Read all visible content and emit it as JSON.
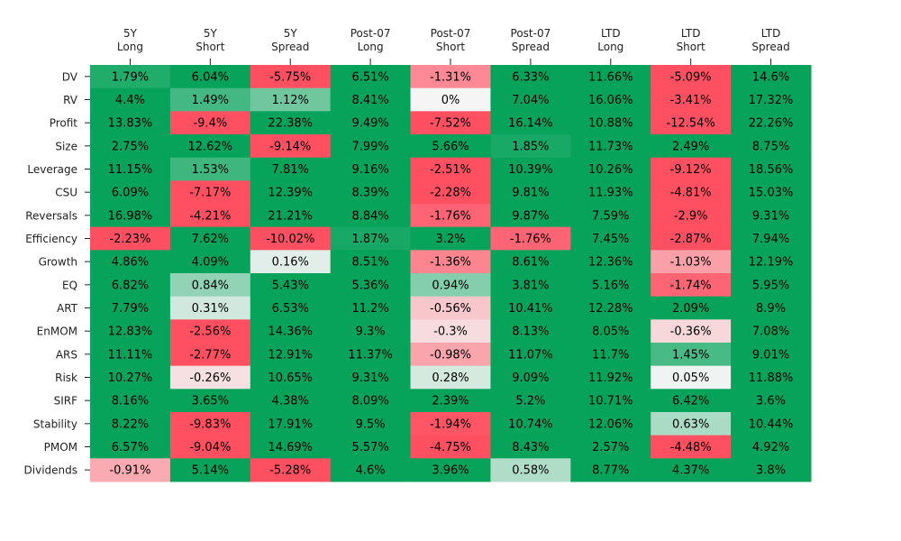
{
  "chart_data": {
    "type": "heatmap",
    "title": "",
    "columns": [
      "5Y\nLong",
      "5Y\nShort",
      "5Y\nSpread",
      "Post-07\nLong",
      "Post-07\nShort",
      "Post-07\nSpread",
      "LTD\nLong",
      "LTD\nShort",
      "LTD\nSpread"
    ],
    "rows": [
      "DV",
      "RV",
      "Profit",
      "Size",
      "Leverage",
      "CSU",
      "Reversals",
      "Efficiency",
      "Growth",
      "EQ",
      "ART",
      "EnMOM",
      "ARS",
      "Risk",
      "SIRF",
      "Stability",
      "PMOM",
      "Dividends"
    ],
    "values": [
      [
        1.79,
        6.04,
        -5.75,
        6.51,
        -1.31,
        6.33,
        11.66,
        -5.09,
        14.6
      ],
      [
        4.4,
        1.49,
        1.12,
        8.41,
        0.0,
        7.04,
        16.06,
        -3.41,
        17.32
      ],
      [
        13.83,
        -9.4,
        22.38,
        9.49,
        -7.52,
        16.14,
        10.88,
        -12.54,
        22.26
      ],
      [
        2.75,
        12.62,
        -9.14,
        7.99,
        5.66,
        1.85,
        11.73,
        2.49,
        8.75
      ],
      [
        11.15,
        1.53,
        7.81,
        9.16,
        -2.51,
        10.39,
        10.26,
        -9.12,
        18.56
      ],
      [
        6.09,
        -7.17,
        12.39,
        8.39,
        -2.28,
        9.81,
        11.93,
        -4.81,
        15.03
      ],
      [
        16.98,
        -4.21,
        21.21,
        8.84,
        -1.76,
        9.87,
        7.59,
        -2.9,
        9.31
      ],
      [
        -2.23,
        7.62,
        -10.02,
        1.87,
        3.2,
        -1.76,
        7.45,
        -2.87,
        7.94
      ],
      [
        4.86,
        4.09,
        0.16,
        8.51,
        -1.36,
        8.61,
        12.36,
        -1.03,
        12.19
      ],
      [
        6.82,
        0.84,
        5.43,
        5.36,
        0.94,
        3.81,
        5.16,
        -1.74,
        5.95
      ],
      [
        7.79,
        0.31,
        6.53,
        11.2,
        -0.56,
        10.41,
        12.28,
        2.09,
        8.9
      ],
      [
        12.83,
        -2.56,
        14.36,
        9.3,
        -0.3,
        8.13,
        8.05,
        -0.36,
        7.08
      ],
      [
        11.11,
        -2.77,
        12.91,
        11.37,
        -0.98,
        11.07,
        11.7,
        1.45,
        9.01
      ],
      [
        10.27,
        -0.26,
        10.65,
        9.31,
        0.28,
        9.09,
        11.92,
        0.05,
        11.88
      ],
      [
        8.16,
        3.65,
        4.38,
        8.09,
        2.39,
        5.2,
        10.71,
        6.42,
        3.6
      ],
      [
        8.22,
        -9.83,
        17.91,
        9.5,
        -1.94,
        10.74,
        12.06,
        0.63,
        10.44
      ],
      [
        6.57,
        -9.04,
        14.69,
        5.57,
        -4.75,
        8.43,
        2.57,
        -4.48,
        4.92
      ],
      [
        -0.91,
        5.14,
        -5.28,
        4.6,
        3.96,
        0.58,
        8.77,
        4.37,
        3.8
      ]
    ],
    "value_suffix": "%",
    "color_scale": {
      "negative": "#ff5061",
      "neutral": "#f5f5f5",
      "positive": "#07a35a",
      "vmin": -2,
      "vmax": 2
    },
    "grid": false,
    "legend": "none"
  }
}
